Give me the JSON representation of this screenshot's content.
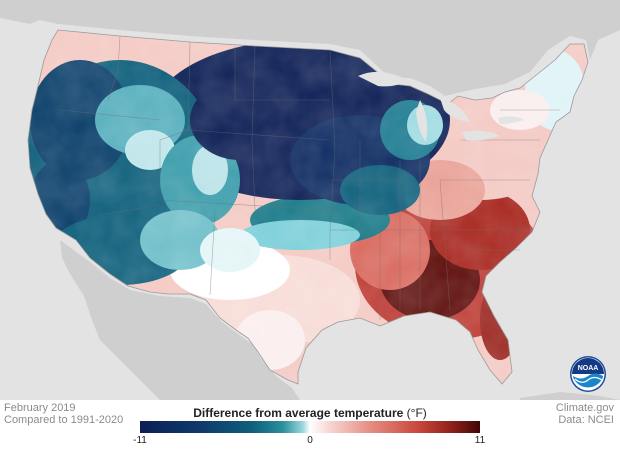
{
  "map": {
    "description_colors": {
      "cold_extreme": "#0d1f55",
      "cold_mid": "#0e5f7b",
      "neutral": "#ffffff",
      "warm_mid": "#d8655a",
      "warm_extreme": "#3e0707",
      "land_outside": "#cfcfcf",
      "water": "#e3e3e3"
    }
  },
  "meta": {
    "date_line": "February 2019",
    "baseline_line": "Compared to 1991-2020",
    "credit_line": "Climate.gov",
    "data_line": "Data: NCEI"
  },
  "legend": {
    "title": "Difference from average temperature",
    "unit": "(°F)",
    "min_label": "-11",
    "mid_label": "0",
    "max_label": "11",
    "min_value": -11,
    "mid_value": 0,
    "max_value": 11
  },
  "logo": {
    "text": "NOAA",
    "icon": "noaa-logo-icon"
  }
}
